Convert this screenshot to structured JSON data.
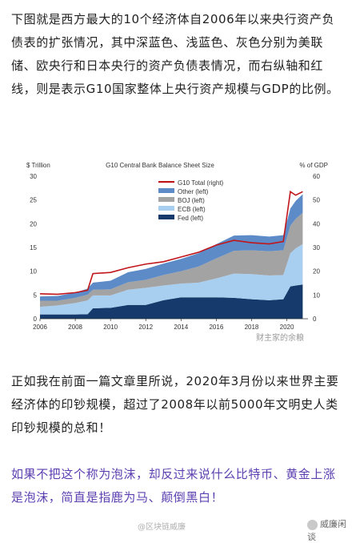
{
  "article": {
    "para1": "下图就是西方最大的10个经济体自2006年以来央行资产负债表的扩张情况，其中深蓝色、浅蓝色、灰色分别为美联储、欧央行和日本央行的资产负债表情况，而右纵轴和红线，则是表示G10国家整体上央行资产规模与GDP的比例。",
    "para2": "正如我在前面一篇文章里所说，2020年3月份以来世界主要经济体的印钞规模，超过了2008年以前5000年文明史人类印钞规模的总和！",
    "para3": "如果不把这个称为泡沫，却反过来说什么比特币、黄金上涨是泡沫，简直是指鹿为马、颠倒黑白！"
  },
  "watermarks": {
    "chart": "财主家的余粮",
    "bottom_left": "@区块链威廉",
    "bottom_right": "威廉闲谈"
  },
  "colors": {
    "fed": "#163a6b",
    "ecb": "#a9cff0",
    "boj": "#a3a3a3",
    "other": "#5d8bc8",
    "g10_total": "#c0161b",
    "purple_text": "#5b3fb0"
  },
  "chart_data": {
    "type": "area",
    "title": "G10 Central Bank Balance Sheet Size",
    "left_axis_unit": "$ Trillion",
    "right_axis_unit": "% of GDP",
    "ylim": [
      0,
      30
    ],
    "y2lim": [
      0,
      60
    ],
    "yticks": [
      "0",
      "5",
      "10",
      "15",
      "20",
      "25",
      "30"
    ],
    "y2ticks": [
      "0",
      "10",
      "20",
      "30",
      "40",
      "50",
      "60"
    ],
    "xticks": [
      "2006",
      "2008",
      "2010",
      "2012",
      "2014",
      "2016",
      "2018",
      "2020"
    ],
    "legend_position": "top-left",
    "x": [
      2006.0,
      2007.0,
      2008.0,
      2008.7,
      2009.0,
      2010.0,
      2011.0,
      2012.0,
      2013.0,
      2014.0,
      2015.0,
      2016.0,
      2017.0,
      2018.0,
      2019.0,
      2019.8,
      2020.2,
      2020.5,
      2020.9
    ],
    "series": [
      {
        "name": "Fed (left)",
        "axis": "left",
        "values": [
          0.9,
          0.9,
          0.9,
          0.95,
          2.2,
          2.3,
          2.9,
          2.9,
          3.9,
          4.5,
          4.5,
          4.5,
          4.4,
          4.1,
          3.9,
          4.1,
          6.8,
          7.0,
          7.2
        ]
      },
      {
        "name": "ECB (left)",
        "axis": "left",
        "values": [
          1.6,
          1.9,
          2.4,
          2.9,
          2.7,
          2.6,
          3.2,
          3.6,
          3.1,
          2.9,
          3.1,
          4.0,
          5.1,
          5.3,
          5.2,
          5.1,
          7.0,
          7.8,
          8.5
        ]
      },
      {
        "name": "BOJ (left)",
        "axis": "left",
        "values": [
          1.3,
          1.0,
          1.1,
          1.2,
          1.2,
          1.3,
          1.6,
          1.7,
          2.2,
          2.6,
          3.4,
          4.2,
          4.8,
          5.0,
          5.1,
          5.2,
          5.8,
          6.2,
          6.6
        ]
      },
      {
        "name": "Other (left)",
        "axis": "left",
        "values": [
          0.9,
          1.0,
          1.1,
          1.3,
          1.5,
          1.8,
          2.1,
          2.3,
          2.4,
          2.6,
          2.8,
          3.0,
          3.2,
          3.2,
          3.1,
          3.2,
          3.6,
          3.8,
          3.9
        ]
      },
      {
        "name": "G10 Total (right)",
        "axis": "right",
        "values": [
          10.5,
          10.3,
          11.0,
          12.0,
          19.0,
          19.5,
          21.5,
          23.0,
          24.0,
          26.0,
          28.0,
          31.0,
          33.0,
          32.0,
          31.5,
          32.5,
          53.5,
          52.0,
          53.5
        ]
      }
    ]
  }
}
